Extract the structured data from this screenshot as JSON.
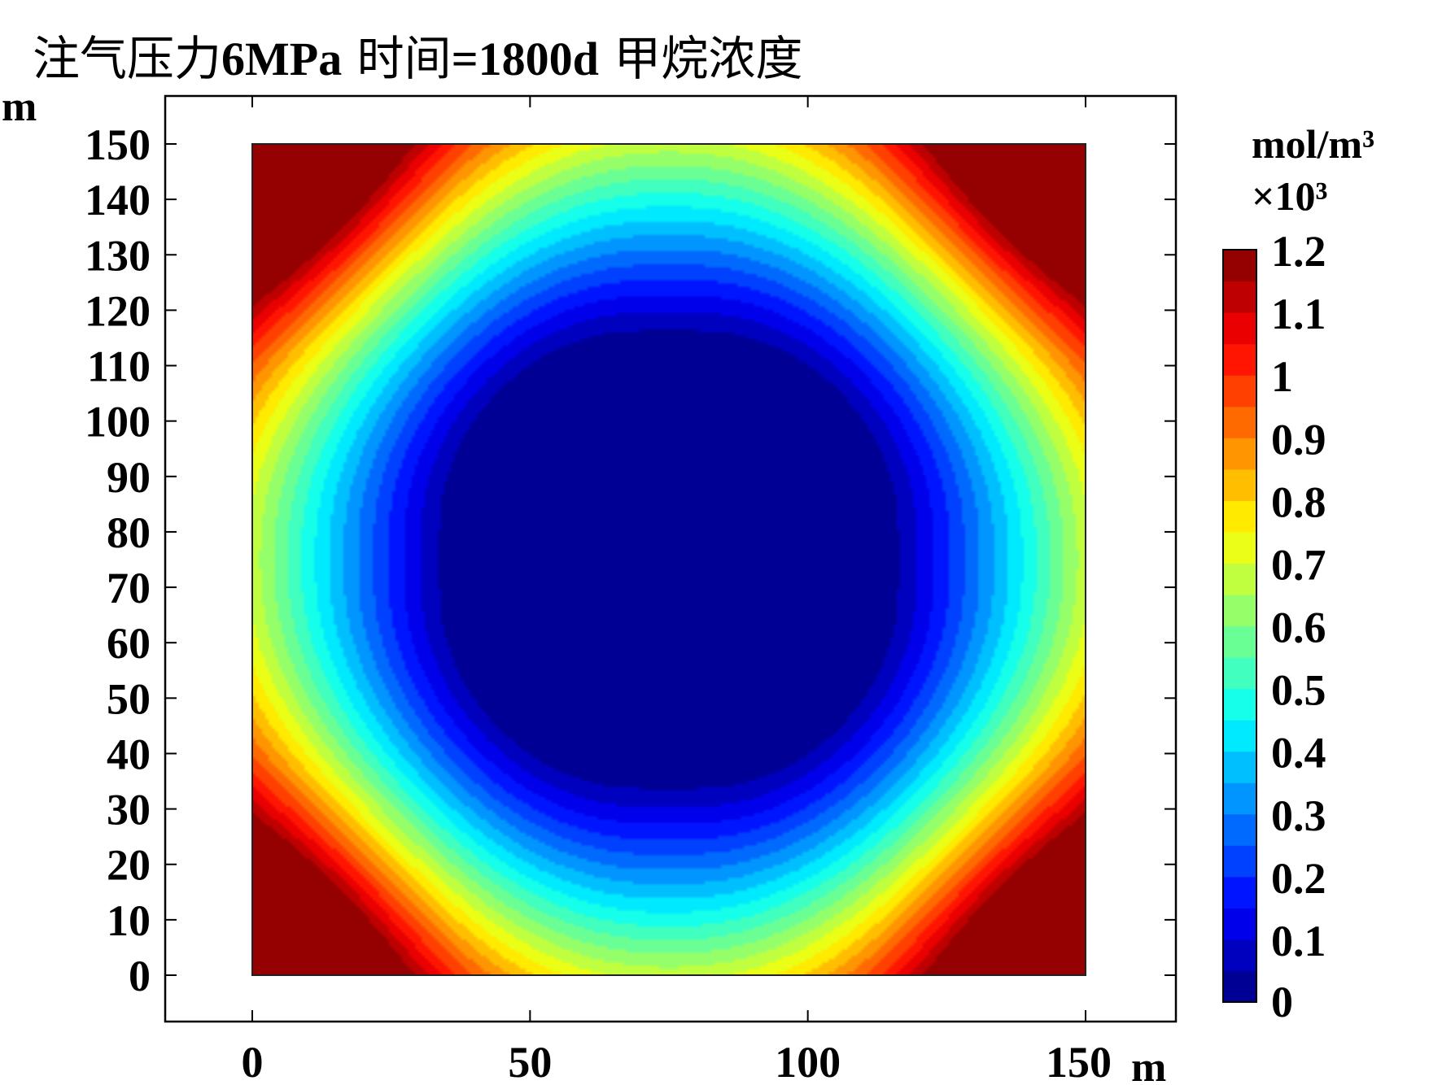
{
  "chart_data": {
    "type": "heatmap",
    "title": "注气压力6MPa 时间=1800d 甲烷浓度",
    "title_parts": {
      "pre": "注气压力",
      "mid": "6MPa",
      "mid2": " 时间",
      "mid3": "=1800d",
      "post": " 甲烷浓度"
    },
    "xlabel": "m",
    "ylabel": "m",
    "xlim": [
      -33,
      165
    ],
    "ylim": [
      -8,
      158
    ],
    "domain": {
      "x": [
        0,
        150
      ],
      "y": [
        0,
        150
      ]
    },
    "xticks": [
      0,
      50,
      100,
      150
    ],
    "xtick_labels": [
      "0",
      "50",
      "100",
      "150"
    ],
    "yticks": [
      0,
      10,
      20,
      30,
      40,
      50,
      60,
      70,
      80,
      90,
      100,
      110,
      120,
      130,
      140,
      150
    ],
    "ytick_labels": [
      "0",
      "10",
      "20",
      "30",
      "40",
      "50",
      "60",
      "70",
      "80",
      "90",
      "100",
      "110",
      "120",
      "130",
      "140",
      "150"
    ],
    "colorbar": {
      "unit": "mol/m³",
      "scale": "×10³",
      "min": 0,
      "max": 1.2,
      "ticks": [
        0,
        0.1,
        0.2,
        0.3,
        0.4,
        0.5,
        0.6,
        0.7,
        0.8,
        0.9,
        1,
        1.1,
        1.2
      ],
      "tick_labels": [
        "0",
        "0.1",
        "0.2",
        "0.3",
        "0.4",
        "0.5",
        "0.6",
        "0.7",
        "0.8",
        "0.9",
        "1",
        "1.1",
        "1.2"
      ],
      "levels": 24,
      "colormap": "jet"
    },
    "field_description_values": {
      "center": [
        75,
        75
      ],
      "center_value": 0.0,
      "corner_value": 1.2,
      "edge_midpoint_value": 0.68
    }
  }
}
